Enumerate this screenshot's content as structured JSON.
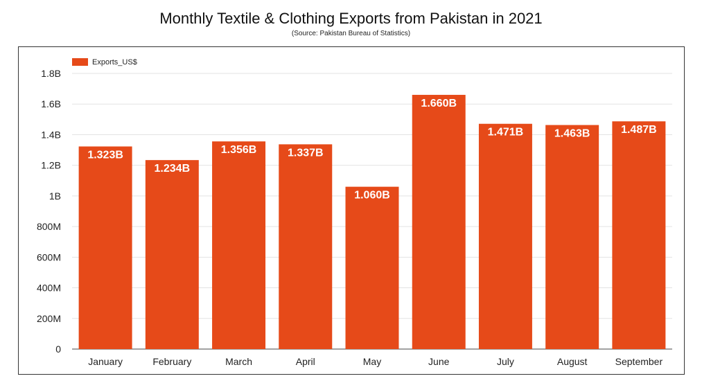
{
  "chart_data": {
    "type": "bar",
    "title": "Monthly Textile & Clothing Exports from Pakistan in 2021",
    "subtitle": "(Source: Pakistan Bureau of Statistics)",
    "categories": [
      "January",
      "February",
      "March",
      "April",
      "May",
      "June",
      "July",
      "August",
      "September"
    ],
    "series": [
      {
        "name": "Exports_US$",
        "values": [
          1.323,
          1.234,
          1.356,
          1.337,
          1.06,
          1.66,
          1.471,
          1.463,
          1.487
        ],
        "labels": [
          "1.323B",
          "1.234B",
          "1.356B",
          "1.337B",
          "1.060B",
          "1.660B",
          "1.471B",
          "1.463B",
          "1.487B"
        ]
      }
    ],
    "ylim": [
      0,
      1.8
    ],
    "yticks": [
      0,
      0.2,
      0.4,
      0.6,
      0.8,
      1.0,
      1.2,
      1.4,
      1.6,
      1.8
    ],
    "ytick_labels": [
      "0",
      "200M",
      "400M",
      "600M",
      "800M",
      "1B",
      "1.2B",
      "1.4B",
      "1.6B",
      "1.8B"
    ],
    "xlabel": "",
    "ylabel": "",
    "grid": true,
    "legend": "top-left",
    "colors": {
      "bar": "#E64A19",
      "grid": "#e3e3e3",
      "axis": "#444444"
    }
  }
}
